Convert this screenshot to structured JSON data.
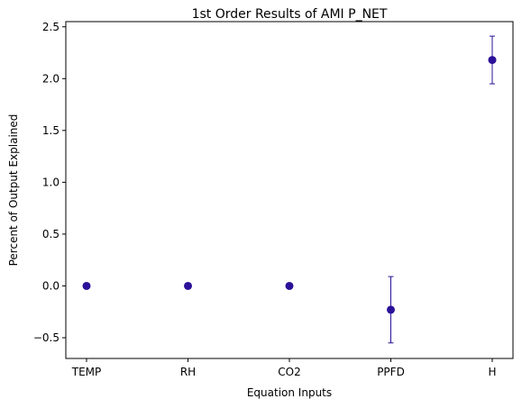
{
  "chart_data": {
    "type": "scatter",
    "title": "1st Order Results of AMI P_NET",
    "xlabel": "Equation Inputs",
    "ylabel": "Percent of Output Explained",
    "categories": [
      "TEMP",
      "RH",
      "CO2",
      "PPFD",
      "H"
    ],
    "values": [
      0.0,
      0.0,
      0.0,
      -0.23,
      2.18
    ],
    "error_low": [
      0.0,
      0.0,
      0.0,
      -0.55,
      1.95
    ],
    "error_high": [
      0.0,
      0.0,
      0.0,
      0.09,
      2.41
    ],
    "ylim": [
      -0.7,
      2.55
    ],
    "yticks": [
      -0.5,
      0.0,
      0.5,
      1.0,
      1.5,
      2.0,
      2.5
    ],
    "ytick_labels": [
      "−0.5",
      "0.0",
      "0.5",
      "1.0",
      "1.5",
      "2.0",
      "2.5"
    ],
    "marker_color": "#2b1199",
    "grid": false
  }
}
